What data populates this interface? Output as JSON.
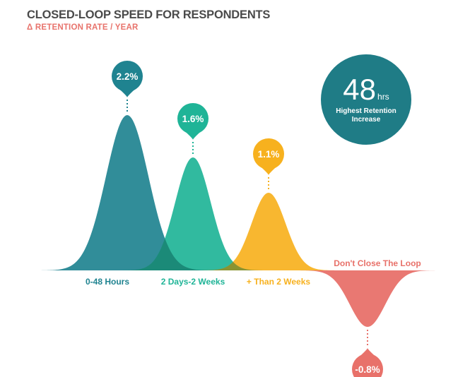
{
  "title": "CLOSED-LOOP SPEED FOR RESPONDENTS",
  "subtitle": "Δ RETENTION RATE / YEAR",
  "callout": {
    "value": "48",
    "unit": "hrs",
    "caption_line1": "Highest Retention",
    "caption_line2": "Increase",
    "color": "#1f7c86"
  },
  "chart_data": {
    "type": "area",
    "title": "CLOSED-LOOP SPEED FOR RESPONDENTS",
    "subtitle": "Δ RETENTION RATE / YEAR",
    "categories": [
      "0-48 Hours",
      "2 Days-2 Weeks",
      "+ Than 2 Weeks",
      "Don't Close The Loop"
    ],
    "values": [
      2.2,
      1.6,
      1.1,
      -0.8
    ],
    "value_labels": [
      "2.2%",
      "1.6%",
      "1.1%",
      "-0.8%"
    ],
    "colors": [
      "#1f8390",
      "#1fb497",
      "#f7b11e",
      "#e8716a"
    ],
    "grid": false,
    "legend": "none"
  }
}
